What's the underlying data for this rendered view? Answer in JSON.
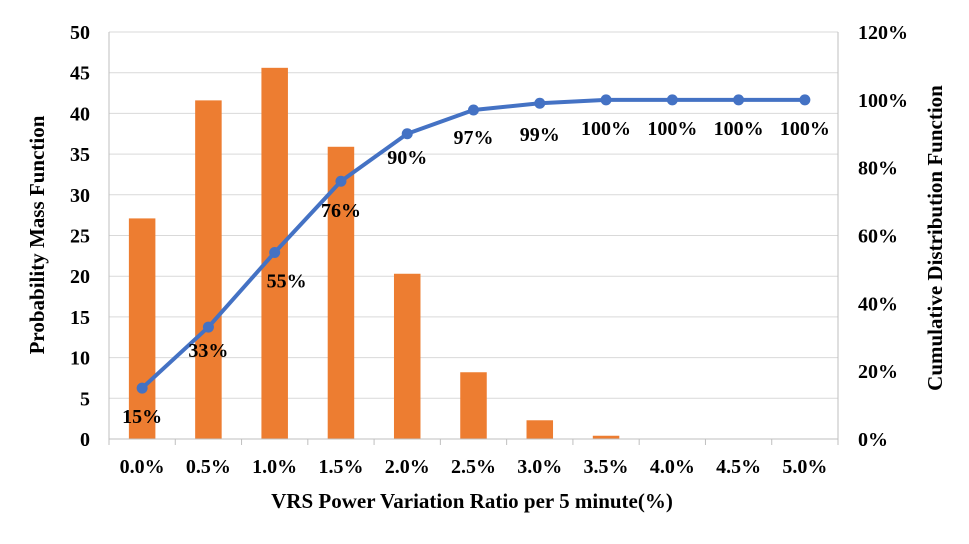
{
  "chart_data": {
    "type": "bar",
    "categories": [
      "0.0%",
      "0.5%",
      "1.0%",
      "1.5%",
      "2.0%",
      "2.5%",
      "3.0%",
      "3.5%",
      "4.0%",
      "4.5%",
      "5.0%"
    ],
    "series": [
      {
        "type": "bar",
        "axis": "left",
        "values": [
          27.1,
          41.6,
          45.6,
          35.9,
          20.3,
          8.2,
          2.3,
          0.4,
          0,
          0,
          0
        ],
        "color": "#ed7d31"
      },
      {
        "type": "line",
        "axis": "right",
        "values": [
          15,
          33,
          55,
          76,
          90,
          97,
          99,
          100,
          100,
          100,
          100
        ],
        "labels": [
          "15%",
          "33%",
          "55%",
          "76%",
          "90%",
          "97%",
          "99%",
          "100%",
          "100%",
          "100%",
          "100%"
        ],
        "color": "#4472c4"
      }
    ],
    "xlabel": "VRS Power Variation Ratio per 5 minute(%)",
    "ylabel": "Probability Mass Function",
    "y2label": "Cumulative Distribution Function",
    "ylim": [
      0,
      50
    ],
    "y2lim": [
      0,
      120
    ],
    "yticks": [
      "0",
      "5",
      "10",
      "15",
      "20",
      "25",
      "30",
      "35",
      "40",
      "45",
      "50"
    ],
    "y2ticks": [
      "0%",
      "20%",
      "40%",
      "60%",
      "80%",
      "100%",
      "120%"
    ],
    "grid": true,
    "legend": "none"
  }
}
